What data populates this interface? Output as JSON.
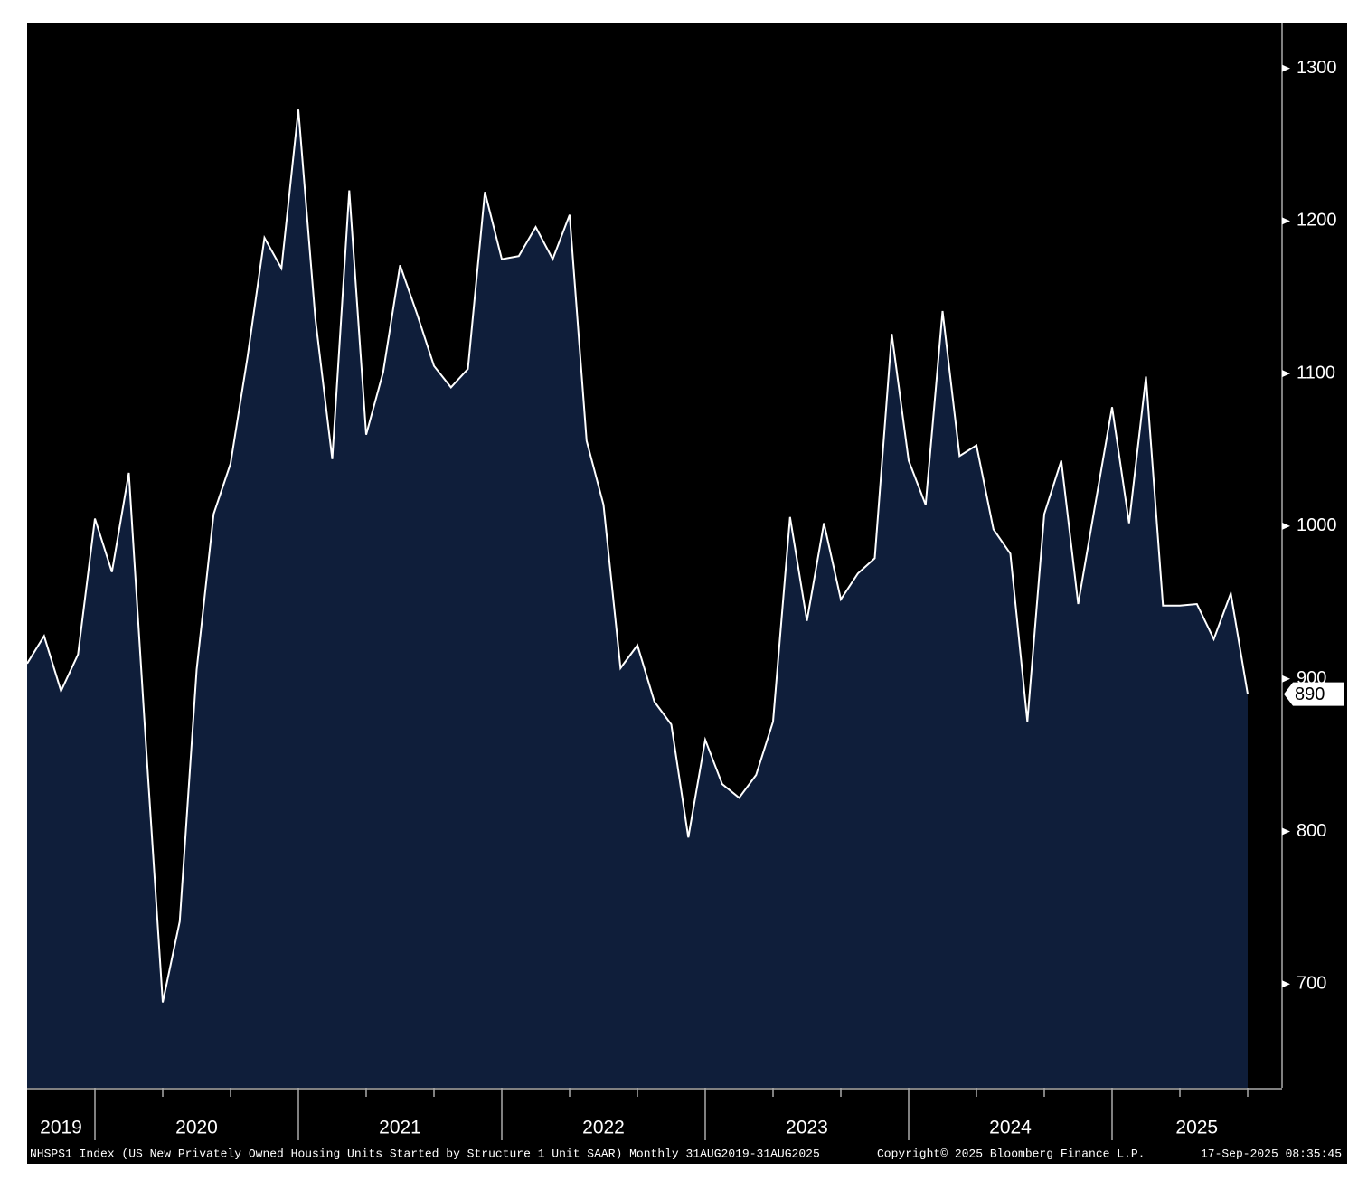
{
  "chart_data": {
    "type": "area",
    "categories": [
      null,
      null,
      "2019",
      null,
      null,
      null,
      null,
      null,
      null,
      null,
      "2020",
      null,
      null,
      null,
      null,
      null,
      null,
      null,
      null,
      null,
      null,
      null,
      "2021",
      null,
      null,
      null,
      null,
      null,
      null,
      null,
      null,
      null,
      null,
      null,
      "2022",
      null,
      null,
      null,
      null,
      null,
      null,
      null,
      null,
      null,
      null,
      null,
      "2023",
      null,
      null,
      null,
      null,
      null,
      null,
      null,
      null,
      null,
      null,
      null,
      "2024",
      null,
      null,
      null,
      null,
      null,
      null,
      null,
      null,
      null,
      null,
      "2025",
      null,
      null,
      null
    ],
    "series": [
      {
        "name": "NHSPS1 Index",
        "color": "#ffffff",
        "fill": "#0f1e3a",
        "values": [
          910,
          928,
          892,
          916,
          1005,
          970,
          1035,
          858,
          688,
          741,
          906,
          1008,
          1041,
          1111,
          1189,
          1169,
          1273,
          1136,
          1044,
          1220,
          1060,
          1101,
          1171,
          1139,
          1105,
          1091,
          1103,
          1219,
          1175,
          1177,
          1196,
          1175,
          1204,
          1056,
          1014,
          907,
          922,
          885,
          870,
          796,
          860,
          831,
          822,
          837,
          872,
          1006,
          938,
          1002,
          952,
          969,
          979,
          1126,
          1043,
          1014,
          1141,
          1046,
          1053,
          998,
          982,
          872,
          1008,
          1043,
          949,
          1014,
          1078,
          1002,
          1098,
          948,
          948,
          949,
          926,
          956,
          890
        ]
      }
    ],
    "ylim": [
      632,
      1330
    ],
    "yticks": [
      700,
      800,
      900,
      1000,
      1100,
      1200,
      1300
    ],
    "footer": {
      "source": "NHSPS1 Index (US New Privately Owned Housing Units Started by Structure 1 Unit SAAR)  Monthly 31AUG2019-31AUG2025",
      "copyright": "Copyright© 2025 Bloomberg Finance L.P.",
      "timestamp": "17-Sep-2025 08:35:45"
    }
  }
}
